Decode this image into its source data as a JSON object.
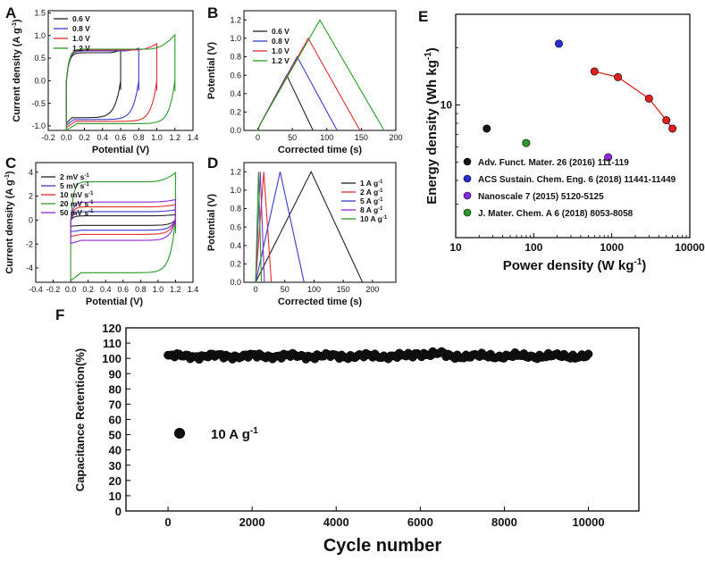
{
  "chart_data": [
    {
      "panel": "A",
      "type": "line",
      "kind": "cv-loop",
      "xlabel": "Potential (V)",
      "ylabel_main": "Current density (A g",
      "ylabel_sup": "-1",
      "ylabel_end": ")",
      "xlim": [
        -0.2,
        1.4
      ],
      "ylim": [
        -1.1,
        1.55
      ],
      "xticks": [
        "-0.2",
        "0.0",
        "0.2",
        "0.4",
        "0.6",
        "0.8",
        "1.0",
        "1.2",
        "1.4"
      ],
      "yticks": [
        "-1.0",
        "-0.5",
        "0.0",
        "0.5",
        "1.0",
        "1.5"
      ],
      "series": [
        {
          "name": "0.6 V",
          "color": "#222222",
          "vmax": 0.6,
          "top": 0.62,
          "peak": 0.68,
          "bottom": -0.82
        },
        {
          "name": "0.8 V",
          "color": "#3a3ad0",
          "vmax": 0.8,
          "top": 0.66,
          "peak": 0.72,
          "bottom": -0.86
        },
        {
          "name": "1.0 V",
          "color": "#e03030",
          "vmax": 1.0,
          "top": 0.68,
          "peak": 0.82,
          "bottom": -0.9
        },
        {
          "name": "1.2 V",
          "color": "#2a9a2a",
          "vmax": 1.2,
          "top": 0.7,
          "peak": 1.02,
          "bottom": -0.95
        }
      ]
    },
    {
      "panel": "B",
      "type": "line",
      "kind": "gcd",
      "xlabel": "Corrected time (s)",
      "ylabel": "Potential (V)",
      "xlim": [
        -20,
        200
      ],
      "ylim": [
        0,
        1.3
      ],
      "xticks": [
        "0",
        "50",
        "100",
        "150",
        "200"
      ],
      "yticks": [
        "0.0",
        "0.2",
        "0.4",
        "0.6",
        "0.8",
        "1.0",
        "1.2"
      ],
      "series": [
        {
          "name": "0.6 V",
          "color": "#222222",
          "points": [
            [
              0,
              0
            ],
            [
              3,
              0.06
            ],
            [
              42,
              0.6
            ],
            [
              80,
              0
            ]
          ]
        },
        {
          "name": "0.8 V",
          "color": "#3a3ad0",
          "points": [
            [
              0,
              0
            ],
            [
              3,
              0.06
            ],
            [
              57,
              0.8
            ],
            [
              115,
              0
            ]
          ]
        },
        {
          "name": "1.0 V",
          "color": "#e03030",
          "points": [
            [
              0,
              0
            ],
            [
              3,
              0.06
            ],
            [
              73,
              1.0
            ],
            [
              148,
              0
            ]
          ]
        },
        {
          "name": "1.2 V",
          "color": "#2a9a2a",
          "points": [
            [
              0,
              0
            ],
            [
              3,
              0.06
            ],
            [
              90,
              1.2
            ],
            [
              183,
              0
            ]
          ]
        }
      ]
    },
    {
      "panel": "C",
      "type": "line",
      "kind": "cv-loop",
      "xlabel": "Potential (V)",
      "ylabel_main": "Current density (A g",
      "ylabel_sup": "-1",
      "ylabel_end": ")",
      "xlim": [
        -0.4,
        1.4
      ],
      "ylim": [
        -5.2,
        4.8
      ],
      "xticks": [
        "-0.4",
        "-0.2",
        "0.0",
        "0.2",
        "0.4",
        "0.6",
        "0.8",
        "1.0",
        "1.2",
        "1.4"
      ],
      "yticks": [
        "-4",
        "-2",
        "0",
        "2",
        "4"
      ],
      "series": [
        {
          "name": "2 mV s",
          "sup": "-1",
          "color": "#222222",
          "vmax": 1.2,
          "top": 0.35,
          "peak": 0.45,
          "bottom": -0.45
        },
        {
          "name": "5 mV s",
          "sup": "-1",
          "color": "#3a3ad0",
          "vmax": 1.2,
          "top": 0.7,
          "peak": 0.85,
          "bottom": -0.85
        },
        {
          "name": "10 mV s",
          "sup": "-1",
          "color": "#e03030",
          "vmax": 1.2,
          "top": 1.1,
          "peak": 1.3,
          "bottom": -1.2
        },
        {
          "name": "20 mV s",
          "sup": "-1",
          "color": "#2a9a2a",
          "vmax": 1.2,
          "top": 3.2,
          "peak": 3.95,
          "bottom": -4.4
        },
        {
          "name": "50 mV s",
          "sup": "-1",
          "color": "#8a2ad0",
          "vmax": 1.2,
          "top": 1.5,
          "peak": 1.7,
          "bottom": -1.7
        }
      ]
    },
    {
      "panel": "D",
      "type": "line",
      "kind": "gcd",
      "xlabel": "Corrected time (s)",
      "ylabel": "Potential (V)",
      "xlim": [
        -20,
        240
      ],
      "ylim": [
        0,
        1.3
      ],
      "xticks": [
        "0",
        "50",
        "100",
        "150",
        "200"
      ],
      "yticks": [
        "0.0",
        "0.2",
        "0.4",
        "0.6",
        "0.8",
        "1.0",
        "1.2"
      ],
      "series": [
        {
          "name": "1 A g",
          "sup": "-1",
          "color": "#222222",
          "points": [
            [
              0,
              0
            ],
            [
              95,
              1.2
            ],
            [
              183,
              0
            ]
          ]
        },
        {
          "name": "2 A g",
          "sup": "-1",
          "color": "#e03030",
          "points": [
            [
              0,
              0
            ],
            [
              14,
              1.2
            ],
            [
              27,
              0
            ]
          ]
        },
        {
          "name": "5 A g",
          "sup": "-1",
          "color": "#3a3ad0",
          "points": [
            [
              0,
              0
            ],
            [
              42,
              1.2
            ],
            [
              83,
              0
            ]
          ]
        },
        {
          "name": "8 A g",
          "sup": "-1",
          "color": "#8a2ad0",
          "points": [
            [
              0,
              0
            ],
            [
              8,
              1.2
            ],
            [
              15,
              0
            ]
          ]
        },
        {
          "name": "10 A g",
          "sup": "-1",
          "color": "#2a9a2a",
          "points": [
            [
              0,
              0
            ],
            [
              5,
              1.2
            ],
            [
              10,
              0
            ]
          ]
        }
      ]
    },
    {
      "panel": "E",
      "type": "scatter",
      "scale": "log",
      "xlabel_main": "Power density (W kg",
      "xlabel_sup": "-1",
      "xlabel_end": ")",
      "ylabel_main": "Energy density (Wh kg",
      "ylabel_sup": "-1",
      "ylabel_end": ")",
      "xlim": [
        10,
        10000
      ],
      "ylim": [
        2,
        30
      ],
      "xticks": [
        {
          "v": 10,
          "label": "10"
        },
        {
          "v": 100,
          "label": "100"
        },
        {
          "v": 1000,
          "label": "1000"
        },
        {
          "v": 10000,
          "label": "10000"
        }
      ],
      "yticks": [
        {
          "v": 10,
          "label": "10"
        }
      ],
      "refs": [
        {
          "label": "Adv. Funct. Mater. 26 (2016) 111-119",
          "color": "#151515",
          "points": [
            [
              25,
              7.5
            ]
          ]
        },
        {
          "label": "ACS Sustain. Chem. Eng. 6 (2018) 11441-11449",
          "color": "#2b2bd6",
          "points": [
            [
              210,
              21
            ]
          ]
        },
        {
          "label": "Nanoscale 7 (2015) 5120-5125",
          "color": "#8a2be2",
          "points": [
            [
              900,
              5.3
            ]
          ]
        },
        {
          "label": "J. Mater. Chem. A 6 (2018) 8053-8058",
          "color": "#2a9a2a",
          "points": [
            [
              80,
              6.3
            ]
          ]
        }
      ],
      "this_work": {
        "color": "#e02020",
        "points": [
          [
            600,
            15
          ],
          [
            1200,
            14
          ],
          [
            3000,
            10.8
          ],
          [
            5000,
            8.3
          ],
          [
            6000,
            7.5
          ]
        ]
      }
    },
    {
      "panel": "F",
      "type": "scatter",
      "xlabel": "Cycle number",
      "ylabel": "Capacitance Retention(%)",
      "xlim": [
        -1000,
        11200
      ],
      "ylim": [
        0,
        120
      ],
      "xticks": [
        "0",
        "2000",
        "4000",
        "6000",
        "8000",
        "10000"
      ],
      "yticks": [
        "0",
        "10",
        "20",
        "30",
        "40",
        "50",
        "60",
        "70",
        "80",
        "90",
        "100",
        "110",
        "120"
      ],
      "legend_label_main": "10 A g",
      "legend_sup": "-1",
      "cycles_start": 0,
      "cycles_end": 10000,
      "retention_mean": 101.5,
      "retention_range": [
        99,
        104.5
      ],
      "marker_color": "#111111"
    }
  ]
}
